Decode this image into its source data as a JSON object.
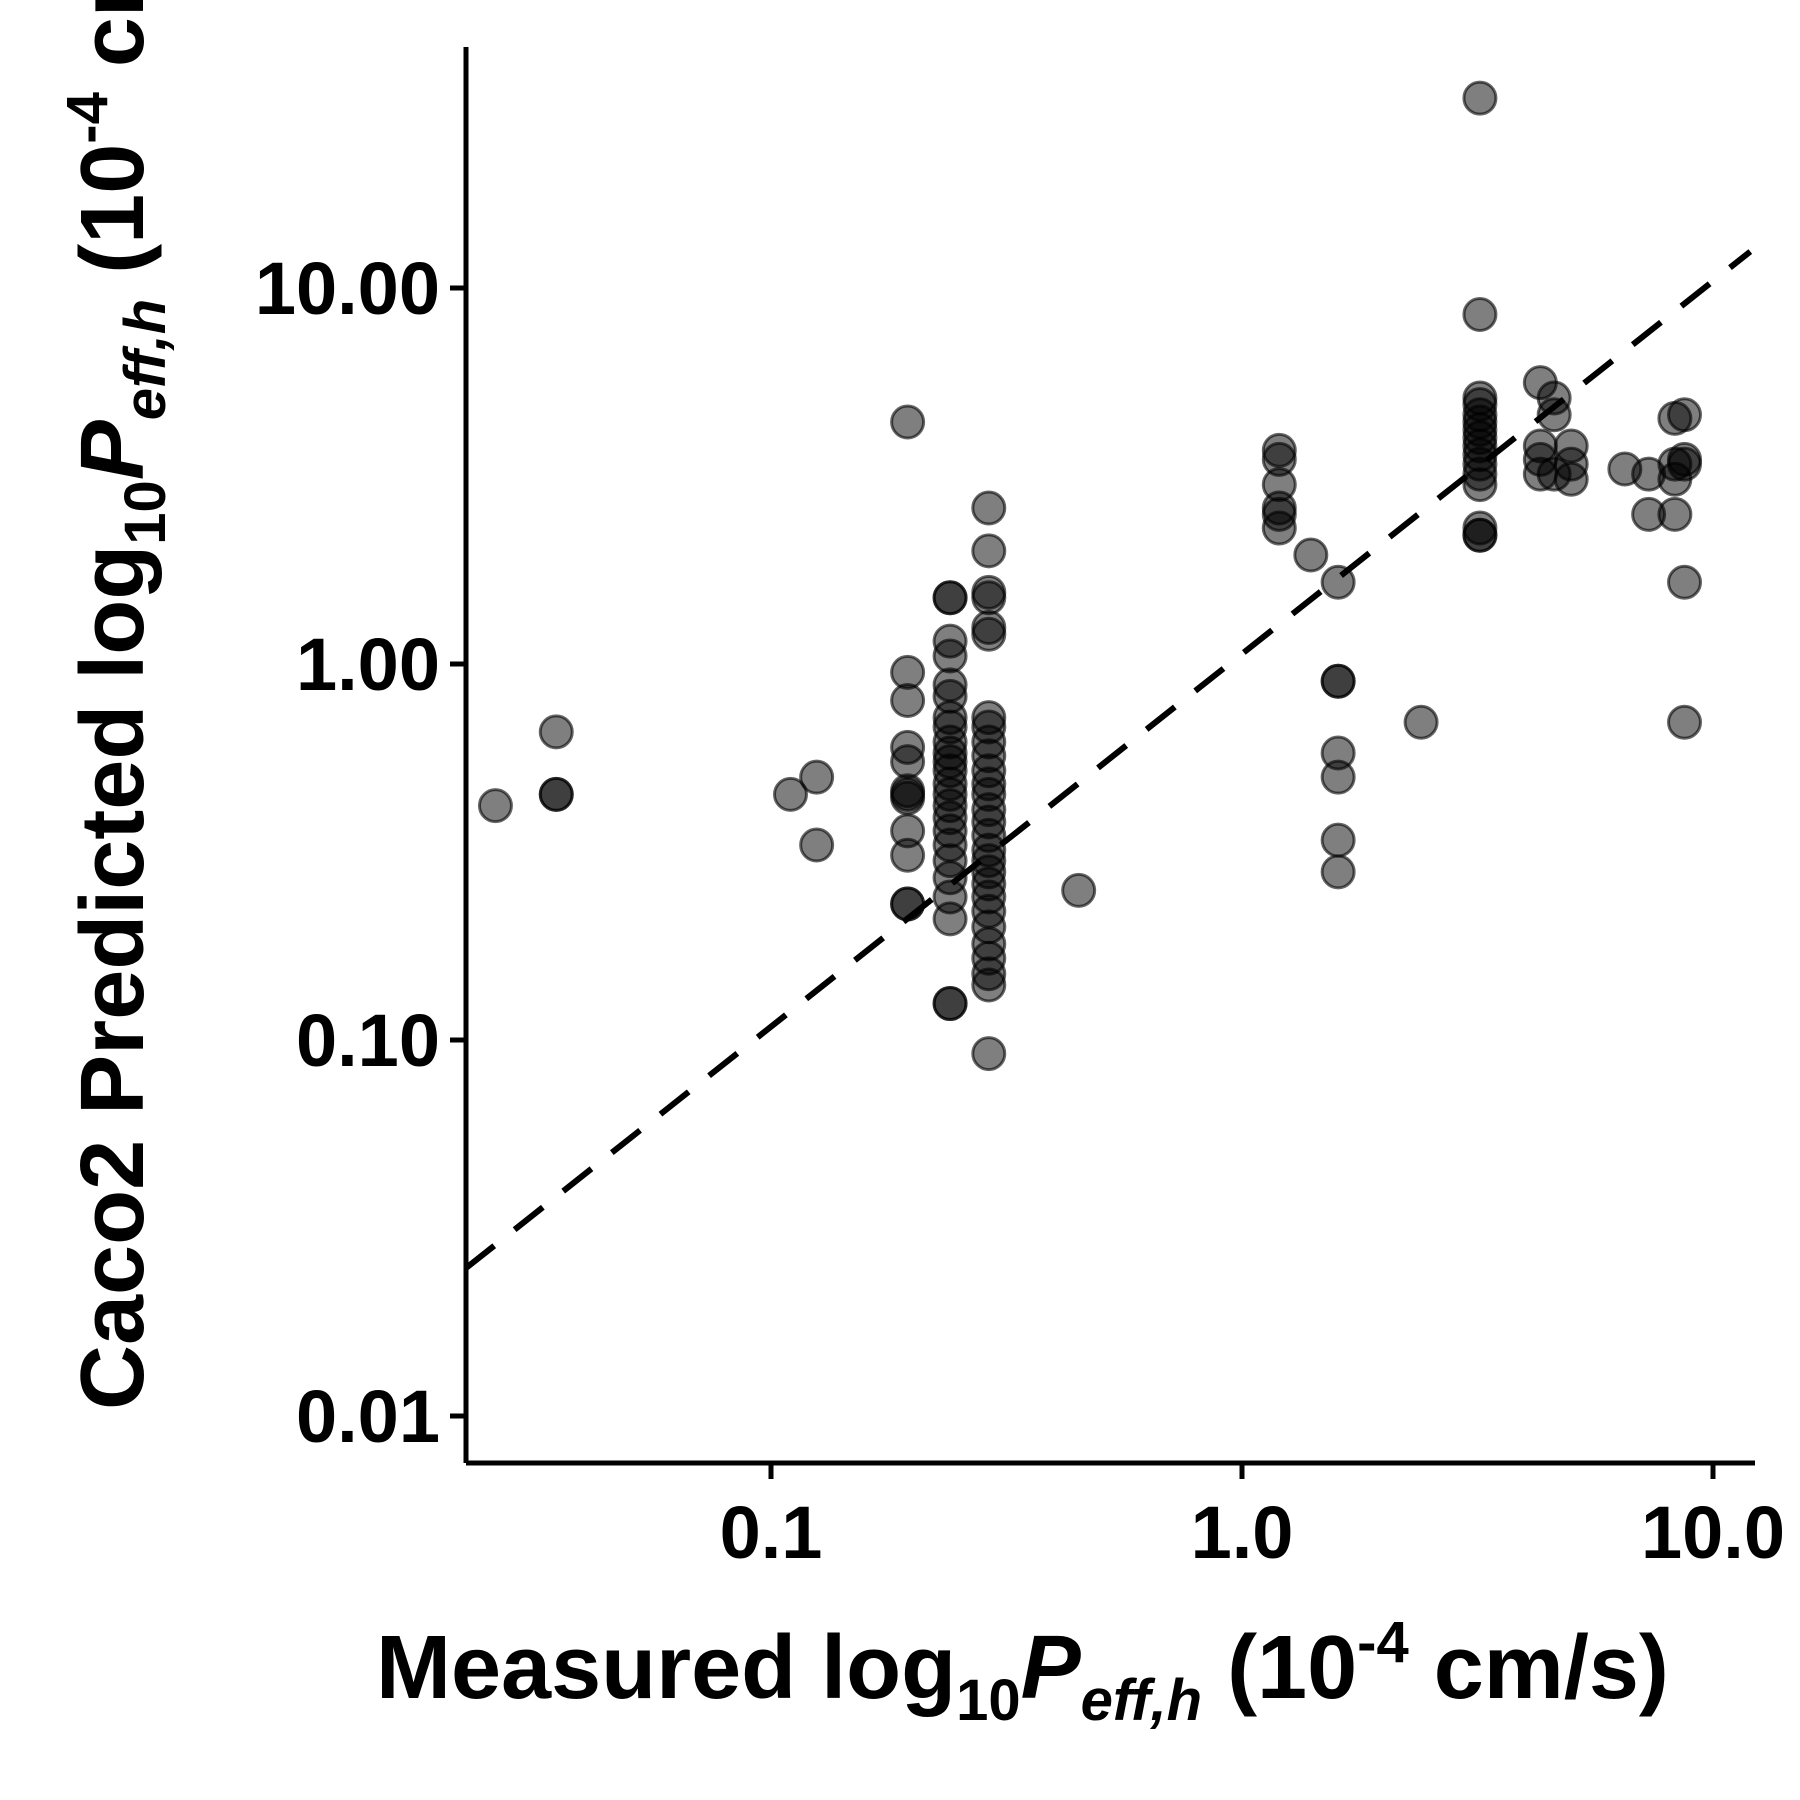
{
  "chart_data": {
    "type": "scatter",
    "title": "",
    "x_scale": "log",
    "y_scale": "log",
    "xlim": [
      0.02,
      12
    ],
    "ylim": [
      0.008,
      40
    ],
    "grid": false,
    "legend": "none",
    "x_ticks": [
      {
        "value": 0.1,
        "label": "0.1"
      },
      {
        "value": 1.0,
        "label": "1.0"
      },
      {
        "value": 10.0,
        "label": "10.0"
      }
    ],
    "y_ticks": [
      {
        "value": 0.01,
        "label": "0.01"
      },
      {
        "value": 0.1,
        "label": "0.10"
      },
      {
        "value": 1.0,
        "label": "1.00"
      },
      {
        "value": 10.0,
        "label": "10.00"
      }
    ],
    "xlabel": {
      "main": "Measured log",
      "sub": "10",
      "var": "P",
      "var_sub": "eff,h",
      "unit_open": " (10",
      "unit_sup": "-4",
      "unit_close": " cm/s)"
    },
    "ylabel": {
      "main": "Caco2 Predicted log",
      "sub": "10",
      "var": "P",
      "var_sub": "eff,h",
      "unit_open": " (10",
      "unit_sup": "-4",
      "unit_close": " cm/s)"
    },
    "reference_line": {
      "style": "dashed",
      "color": "#000000",
      "points": [
        [
          0.02,
          0.022
        ],
        [
          12,
          12.5
        ]
      ]
    },
    "point_color": "#000000",
    "point_opacity": 0.5,
    "points": [
      [
        0.026,
        0.42
      ],
      [
        0.035,
        0.66
      ],
      [
        0.035,
        0.45
      ],
      [
        0.035,
        0.45
      ],
      [
        0.11,
        0.45
      ],
      [
        0.125,
        0.5
      ],
      [
        0.125,
        0.33
      ],
      [
        0.195,
        4.4
      ],
      [
        0.195,
        0.95
      ],
      [
        0.195,
        0.8
      ],
      [
        0.195,
        0.6
      ],
      [
        0.195,
        0.55
      ],
      [
        0.195,
        0.46
      ],
      [
        0.195,
        0.45
      ],
      [
        0.195,
        0.44
      ],
      [
        0.195,
        0.36
      ],
      [
        0.195,
        0.31
      ],
      [
        0.195,
        0.23
      ],
      [
        0.195,
        0.23
      ],
      [
        0.24,
        1.5
      ],
      [
        0.24,
        1.5
      ],
      [
        0.24,
        1.15
      ],
      [
        0.24,
        1.05
      ],
      [
        0.24,
        0.88
      ],
      [
        0.24,
        0.82
      ],
      [
        0.24,
        0.72
      ],
      [
        0.24,
        0.68
      ],
      [
        0.24,
        0.62
      ],
      [
        0.24,
        0.58
      ],
      [
        0.24,
        0.55
      ],
      [
        0.24,
        0.52
      ],
      [
        0.24,
        0.48
      ],
      [
        0.24,
        0.45
      ],
      [
        0.24,
        0.42
      ],
      [
        0.24,
        0.39
      ],
      [
        0.24,
        0.36
      ],
      [
        0.24,
        0.33
      ],
      [
        0.24,
        0.3
      ],
      [
        0.24,
        0.27
      ],
      [
        0.24,
        0.24
      ],
      [
        0.24,
        0.21
      ],
      [
        0.24,
        0.125
      ],
      [
        0.24,
        0.125
      ],
      [
        0.29,
        2.6
      ],
      [
        0.29,
        2.0
      ],
      [
        0.29,
        1.55
      ],
      [
        0.29,
        1.5
      ],
      [
        0.29,
        1.25
      ],
      [
        0.29,
        1.2
      ],
      [
        0.29,
        0.72
      ],
      [
        0.29,
        0.68
      ],
      [
        0.29,
        0.62
      ],
      [
        0.29,
        0.57
      ],
      [
        0.29,
        0.52
      ],
      [
        0.29,
        0.48
      ],
      [
        0.29,
        0.45
      ],
      [
        0.29,
        0.41
      ],
      [
        0.29,
        0.38
      ],
      [
        0.29,
        0.35
      ],
      [
        0.29,
        0.32
      ],
      [
        0.29,
        0.3
      ],
      [
        0.29,
        0.28
      ],
      [
        0.29,
        0.26
      ],
      [
        0.29,
        0.24
      ],
      [
        0.29,
        0.22
      ],
      [
        0.29,
        0.2
      ],
      [
        0.29,
        0.18
      ],
      [
        0.29,
        0.165
      ],
      [
        0.29,
        0.15
      ],
      [
        0.29,
        0.14
      ],
      [
        0.29,
        0.092
      ],
      [
        0.45,
        0.25
      ],
      [
        1.2,
        3.7
      ],
      [
        1.2,
        3.5
      ],
      [
        1.2,
        3.0
      ],
      [
        1.2,
        2.6
      ],
      [
        1.2,
        2.5
      ],
      [
        1.2,
        2.3
      ],
      [
        1.4,
        1.95
      ],
      [
        1.6,
        1.65
      ],
      [
        1.6,
        0.9
      ],
      [
        1.6,
        0.9
      ],
      [
        1.6,
        0.58
      ],
      [
        1.6,
        0.5
      ],
      [
        1.6,
        0.34
      ],
      [
        1.6,
        0.28
      ],
      [
        2.4,
        0.7
      ],
      [
        3.2,
        32
      ],
      [
        3.2,
        8.5
      ],
      [
        3.2,
        5.1
      ],
      [
        3.2,
        4.9
      ],
      [
        3.2,
        4.6
      ],
      [
        3.2,
        4.4
      ],
      [
        3.2,
        4.2
      ],
      [
        3.2,
        4.0
      ],
      [
        3.2,
        3.8
      ],
      [
        3.2,
        3.6
      ],
      [
        3.2,
        3.4
      ],
      [
        3.2,
        3.2
      ],
      [
        3.2,
        3.0
      ],
      [
        3.2,
        2.3
      ],
      [
        3.2,
        2.2
      ],
      [
        3.2,
        2.2
      ],
      [
        4.3,
        5.6
      ],
      [
        4.3,
        3.8
      ],
      [
        4.3,
        3.5
      ],
      [
        4.3,
        3.2
      ],
      [
        4.6,
        5.1
      ],
      [
        4.6,
        4.6
      ],
      [
        4.6,
        3.2
      ],
      [
        5.0,
        3.8
      ],
      [
        5.0,
        3.4
      ],
      [
        5.0,
        3.1
      ],
      [
        6.5,
        3.3
      ],
      [
        7.3,
        3.2
      ],
      [
        7.3,
        2.5
      ],
      [
        8.3,
        4.5
      ],
      [
        8.3,
        3.4
      ],
      [
        8.3,
        3.1
      ],
      [
        8.3,
        2.5
      ],
      [
        8.7,
        4.6
      ],
      [
        8.7,
        3.5
      ],
      [
        8.7,
        3.4
      ],
      [
        8.7,
        1.65
      ],
      [
        8.7,
        0.7
      ]
    ]
  }
}
